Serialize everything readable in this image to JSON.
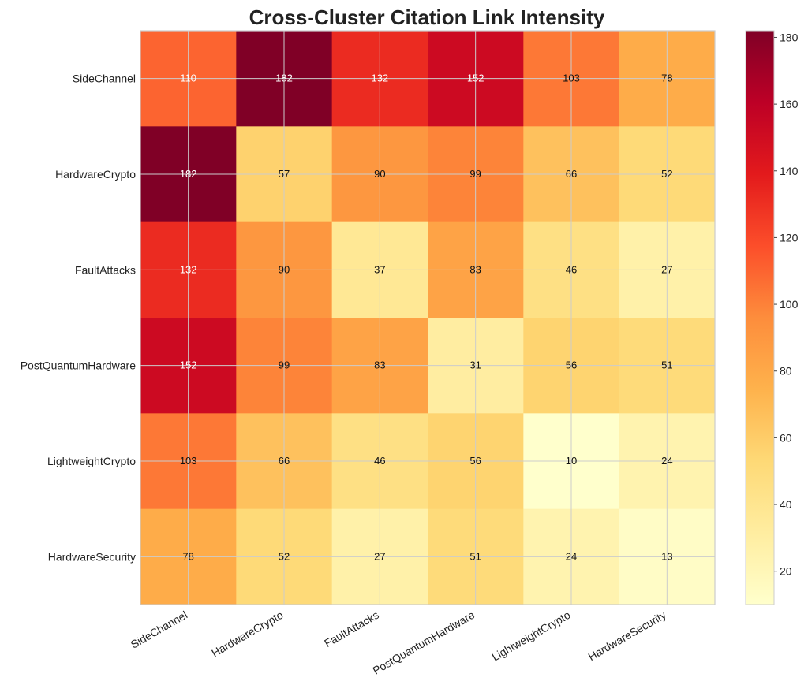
{
  "chart_data": {
    "type": "heatmap",
    "title": "Cross-Cluster Citation Link Intensity",
    "xlabel": "",
    "ylabel": "",
    "x_categories": [
      "SideChannel",
      "HardwareCrypto",
      "FaultAttacks",
      "PostQuantumHardware",
      "LightweightCrypto",
      "HardwareSecurity"
    ],
    "y_categories": [
      "SideChannel",
      "HardwareCrypto",
      "FaultAttacks",
      "PostQuantumHardware",
      "LightweightCrypto",
      "HardwareSecurity"
    ],
    "values": [
      [
        110,
        182,
        132,
        152,
        103,
        78
      ],
      [
        182,
        57,
        90,
        99,
        66,
        52
      ],
      [
        132,
        90,
        37,
        83,
        46,
        27
      ],
      [
        152,
        99,
        83,
        31,
        56,
        51
      ],
      [
        103,
        66,
        46,
        56,
        10,
        24
      ],
      [
        78,
        52,
        27,
        51,
        24,
        13
      ]
    ],
    "colormap": "YlOrRd",
    "vmin": 10,
    "vmax": 182,
    "colorbar_ticks": [
      20,
      40,
      60,
      80,
      100,
      120,
      140,
      160,
      180
    ],
    "grid": true,
    "annotations": true
  }
}
